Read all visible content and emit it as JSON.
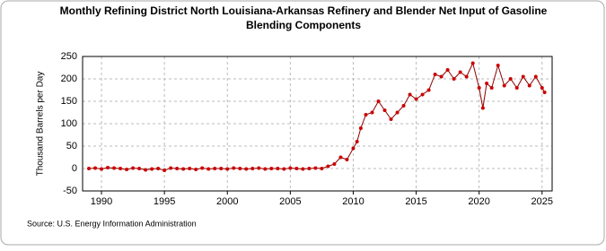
{
  "chart_data": {
    "type": "line",
    "title": [
      "Monthly Refining District North Louisiana-Arkansas Refinery and Blender Net Input of Gasoline",
      "Blending Components"
    ],
    "y_label": "Thousand Barrels per Day",
    "source": "Source: U.S. Energy Information Administration",
    "x": [
      1989,
      1989.5,
      1990,
      1990.5,
      1991,
      1991.5,
      1992,
      1992.5,
      1993,
      1993.5,
      1994,
      1994.5,
      1995,
      1995.5,
      1996,
      1996.5,
      1997,
      1997.5,
      1998,
      1998.5,
      1999,
      1999.5,
      2000,
      2000.5,
      2001,
      2001.5,
      2002,
      2002.5,
      2003,
      2003.5,
      2004,
      2004.5,
      2005,
      2005.5,
      2006,
      2006.5,
      2007,
      2007.5,
      2008,
      2008.5,
      2009,
      2009.5,
      2010,
      2010.3,
      2010.6,
      2011,
      2011.5,
      2012,
      2012.5,
      2013,
      2013.5,
      2014,
      2014.5,
      2015,
      2015.5,
      2016,
      2016.5,
      2017,
      2017.5,
      2018,
      2018.5,
      2019,
      2019.5,
      2020,
      2020.3,
      2020.6,
      2021,
      2021.5,
      2022,
      2022.5,
      2023,
      2023.5,
      2024,
      2024.5,
      2025,
      2025.2
    ],
    "series": [
      {
        "color": "#cc0000",
        "values": [
          0,
          1,
          -1,
          2,
          1,
          0,
          -2,
          1,
          0,
          -3,
          -1,
          0,
          -4,
          1,
          0,
          -1,
          0,
          -2,
          1,
          -1,
          0,
          0,
          -1,
          1,
          0,
          -1,
          0,
          1,
          -1,
          0,
          0,
          -1,
          1,
          0,
          -1,
          0,
          1,
          0,
          5,
          10,
          25,
          20,
          45,
          60,
          90,
          120,
          125,
          150,
          130,
          110,
          125,
          140,
          165,
          155,
          165,
          175,
          210,
          205,
          220,
          200,
          215,
          205,
          235,
          180,
          135,
          190,
          180,
          230,
          185,
          200,
          180,
          205,
          185,
          205,
          180,
          170
        ]
      }
    ],
    "xlim": [
      1988.5,
      2025.8
    ],
    "xticks": [
      1990,
      1995,
      2000,
      2005,
      2010,
      2015,
      2020,
      2025
    ],
    "ylim": [
      -50,
      250
    ],
    "yticks": [
      -50,
      0,
      50,
      100,
      150,
      200,
      250
    ],
    "grid": true
  }
}
